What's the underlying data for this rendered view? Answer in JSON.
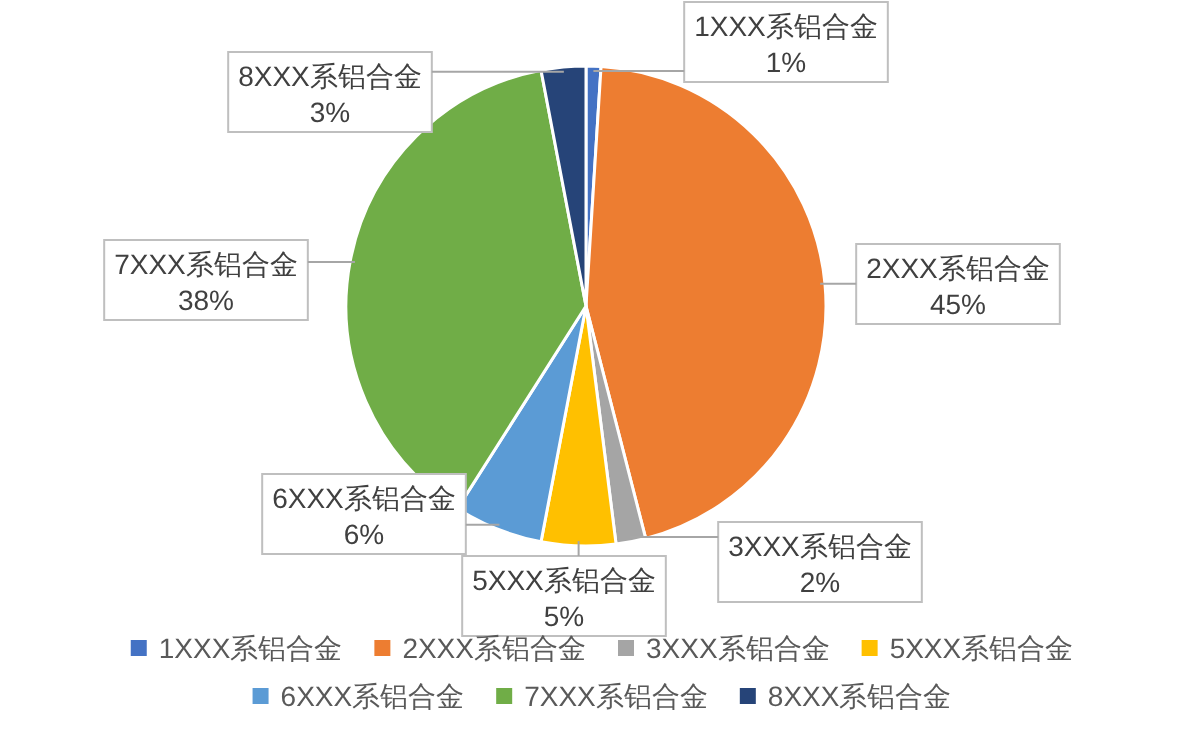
{
  "chart_data": {
    "type": "pie",
    "categories": [
      "1XXX系铝合金",
      "2XXX系铝合金",
      "3XXX系铝合金",
      "5XXX系铝合金",
      "6XXX系铝合金",
      "7XXX系铝合金",
      "8XXX系铝合金"
    ],
    "values": [
      1,
      45,
      2,
      5,
      6,
      38,
      3
    ],
    "colors": [
      "#4472c4",
      "#ed7d31",
      "#a5a5a5",
      "#ffc000",
      "#5b9bd5",
      "#70ad47",
      "#264478"
    ],
    "value_labels": [
      "1%",
      "45%",
      "2%",
      "5%",
      "6%",
      "38%",
      "3%"
    ],
    "legend": "bottom"
  }
}
